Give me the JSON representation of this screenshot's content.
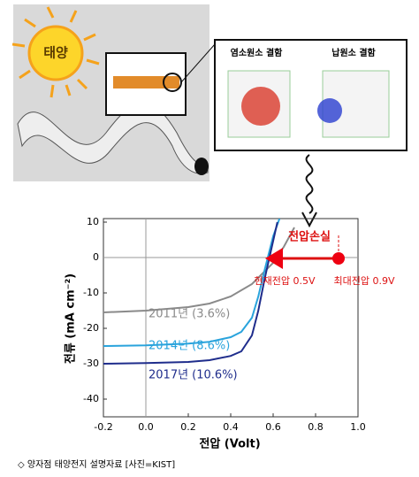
{
  "illustration": {
    "sun_label": "태양",
    "defect_labels": [
      "염소원소 결함",
      "납원소 결함"
    ]
  },
  "chart_data": {
    "type": "line",
    "x_label": "전압 (Volt)",
    "y_label": "전류 (mA cm⁻²)",
    "annotations": [
      "전압손실",
      "현재전압 0.5V",
      "최대전압 0.9V"
    ],
    "xlim": [
      -0.2,
      1.0
    ],
    "ylim": [
      -45,
      11
    ],
    "xticks": [
      -0.2,
      {
        "value": 0,
        "label": "0.0"
      },
      0.2,
      0.4,
      0.6,
      0.8,
      {
        "value": 1,
        "label": "1.0"
      }
    ],
    "yticks": [
      10,
      0,
      -10,
      -20,
      -30,
      -40
    ],
    "series": [
      {
        "name": "2011년 (3.6%)",
        "color": "#8a8a8a",
        "x": [
          -0.2,
          0,
          0.2,
          0.3,
          0.4,
          0.5,
          0.55,
          0.6,
          0.65,
          0.7
        ],
        "values": [
          -15.5,
          -15,
          -14,
          -13,
          -11,
          -7.5,
          -4.5,
          -1.5,
          3,
          8.5
        ]
      },
      {
        "name": "2014년 (8.6%)",
        "color": "#29a3dc",
        "x": [
          -0.2,
          0,
          0.2,
          0.3,
          0.4,
          0.45,
          0.5,
          0.53,
          0.56,
          0.6,
          0.63
        ],
        "values": [
          -25,
          -24.8,
          -24.3,
          -23.8,
          -22.5,
          -21,
          -17,
          -11,
          -3.5,
          6,
          11
        ]
      },
      {
        "name": "2017년 (10.6%)",
        "color": "#1f2d8c",
        "x": [
          -0.2,
          0,
          0.2,
          0.3,
          0.4,
          0.45,
          0.5,
          0.53,
          0.56,
          0.59,
          0.62
        ],
        "values": [
          -30,
          -29.8,
          -29.5,
          -29,
          -27.8,
          -26.5,
          -22,
          -15,
          -6,
          2,
          10
        ]
      }
    ]
  },
  "caption": "◇ 양자점 태양전지 설명자료 [사진=KIST]"
}
